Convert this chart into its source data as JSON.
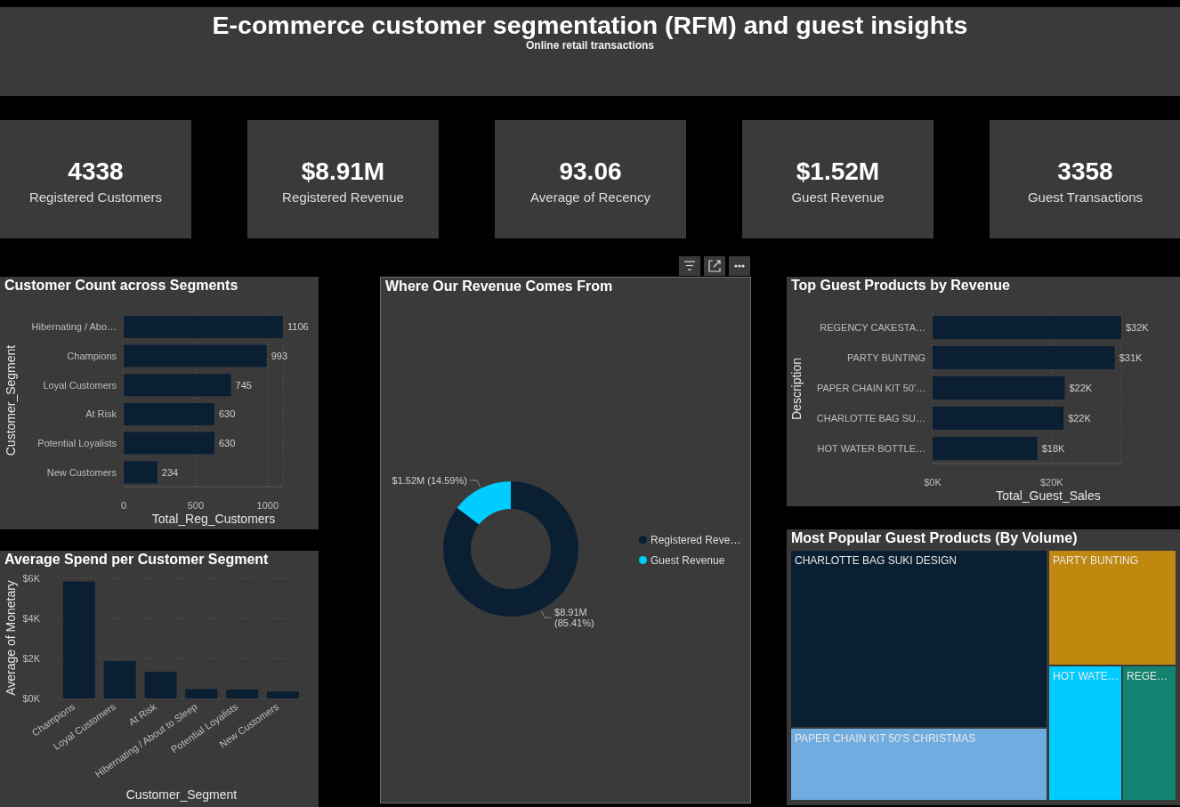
{
  "chart_data": [
    {
      "type": "other",
      "title": "E-commerce customer segmentation (RFM) and guest insights",
      "subtitle": "Online retail transactions",
      "categories": [
        "Registered Customers",
        "Registered Revenue",
        "Average of Recency",
        "Guest Revenue",
        "Guest Transactions"
      ],
      "annotations": [
        "4338",
        "$8.91M",
        "93.06",
        "$1.52M",
        "3358"
      ]
    },
    {
      "type": "bar",
      "orientation": "horizontal",
      "title": "Customer Count across Segments",
      "categories": [
        "Hibernating / Abo…",
        "Champions",
        "Loyal Customers",
        "At Risk",
        "Potential Loyalists",
        "New Customers"
      ],
      "values": [
        1106,
        993,
        745,
        630,
        630,
        234
      ],
      "color": "#0b1f33",
      "xlim": [
        0,
        1106
      ],
      "xticks": [
        0,
        500,
        1000
      ],
      "xlabel": "Total_Reg_Customers",
      "ylabel": "Customer_Segment",
      "grid": "x",
      "data_labels": true
    },
    {
      "type": "donut",
      "title": "Where Our Revenue Comes From",
      "categories": [
        "Registered Reve…",
        "Guest Revenue"
      ],
      "values": [
        85.41,
        14.59
      ],
      "colors": [
        "#0b1f33",
        "#00ccff"
      ],
      "value_labels": [
        "$8.91M (85.41%)",
        "$1.52M (14.59%)"
      ],
      "legend": "right"
    },
    {
      "type": "bar",
      "orientation": "horizontal",
      "title": "Top Guest Products by Revenue",
      "categories": [
        "REGENCY CAKESTA…",
        "PARTY BUNTING",
        "PAPER CHAIN KIT 50'…",
        "CHARLOTTE BAG SU…",
        "HOT WATER BOTTLE…"
      ],
      "values": [
        31700,
        30600,
        22200,
        22000,
        17600
      ],
      "color": "#0b1f33",
      "xlim": [
        0,
        31700
      ],
      "xticks": [
        {
          "value": 0,
          "label": "$0K"
        },
        {
          "value": 20000,
          "label": "$20K"
        }
      ],
      "xlabel": "Total_Guest_Sales",
      "ylabel": "Description",
      "grid": "x",
      "value_labels": [
        "$32K",
        "$31K",
        "$22K",
        "$22K",
        "$18K"
      ]
    },
    {
      "type": "bar",
      "title": "Average Spend per Customer Segment",
      "categories": [
        "Champions",
        "Loyal Customers",
        "At Risk",
        "Hibernating / About to Sleep",
        "Potential Loyalists",
        "New Customers"
      ],
      "values": [
        5850,
        1870,
        1330,
        470,
        440,
        340
      ],
      "color": "#0b1f33",
      "ylim": [
        0,
        6000
      ],
      "yticks": [
        {
          "value": 0,
          "label": "$0K"
        },
        {
          "value": 2000,
          "label": "$2K"
        },
        {
          "value": 4000,
          "label": "$4K"
        },
        {
          "value": 6000,
          "label": "$6K"
        }
      ],
      "xlabel": "Customer_Segment",
      "ylabel": "Average of Monetary",
      "grid": "y"
    },
    {
      "type": "other",
      "title": "Most Popular Guest Products (By Volume)",
      "categories": [
        "CHARLOTTE BAG SUKI DESIGN",
        "PAPER CHAIN KIT 50'S CHRISTMAS",
        "PARTY BUNTING",
        "HOT WATE…",
        "REGE…"
      ],
      "colors": [
        "#0b1f33",
        "#6fade0",
        "#c0880f",
        "#00ccff",
        "#128370"
      ]
    }
  ]
}
